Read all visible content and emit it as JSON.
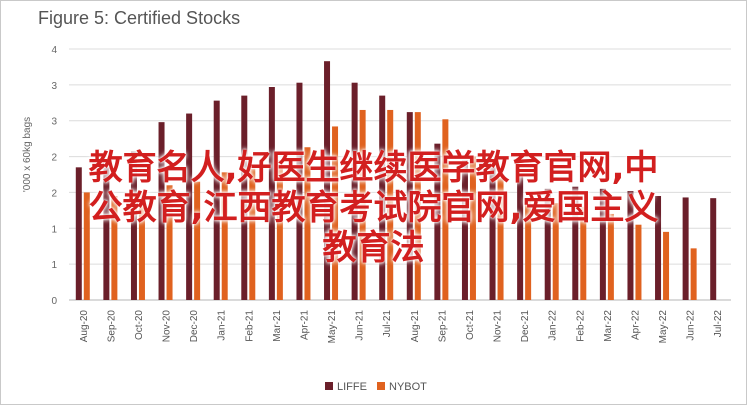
{
  "title": "Figure 5: Certified Stocks",
  "overlay_lines": [
    "教育名人,好医生继续医学教育官网,中",
    "公教育,江西教育考试院官网,爱国主义",
    "教育法"
  ],
  "chart_data": {
    "type": "bar",
    "title": "Figure 5: Certified Stocks",
    "ylabel": "'000 x 60kg bags",
    "ylim": [
      0,
      3.5
    ],
    "yticks": [
      0,
      0.5,
      1,
      1.5,
      2,
      2.5,
      3,
      3.5
    ],
    "ytick_labels": [
      "0",
      "1",
      "1",
      "2",
      "2",
      "3",
      "3",
      "4"
    ],
    "grid": true,
    "legend_position": "bottom",
    "colors": {
      "LIFFE": "#6b1f2a",
      "NYBOT": "#e0621f"
    },
    "categories": [
      "Aug-20",
      "Sep-20",
      "Oct-20",
      "Nov-20",
      "Dec-20",
      "Jan-21",
      "Feb-21",
      "Mar-21",
      "Apr-21",
      "May-21",
      "Jun-21",
      "Jul-21",
      "Aug-21",
      "Sep-21",
      "Oct-21",
      "Nov-21",
      "Dec-21",
      "Jan-22",
      "Feb-22",
      "Mar-22",
      "Apr-22",
      "May-22",
      "Jun-22",
      "Jul-22"
    ],
    "series": [
      {
        "name": "LIFFE",
        "values": [
          1.85,
          1.85,
          2.07,
          2.48,
          2.6,
          2.78,
          2.85,
          2.97,
          3.03,
          3.33,
          3.03,
          2.85,
          2.62,
          2.18,
          1.95,
          1.85,
          1.75,
          1.55,
          1.58,
          1.55,
          1.52,
          1.45,
          1.43,
          1.42
        ]
      },
      {
        "name": "NYBOT",
        "values": [
          1.5,
          1.45,
          1.5,
          1.6,
          1.65,
          1.78,
          1.83,
          1.95,
          2.13,
          2.42,
          2.65,
          2.65,
          2.62,
          2.52,
          2.0,
          1.7,
          1.4,
          1.35,
          1.3,
          1.2,
          1.05,
          0.95,
          0.72,
          null
        ]
      }
    ]
  }
}
